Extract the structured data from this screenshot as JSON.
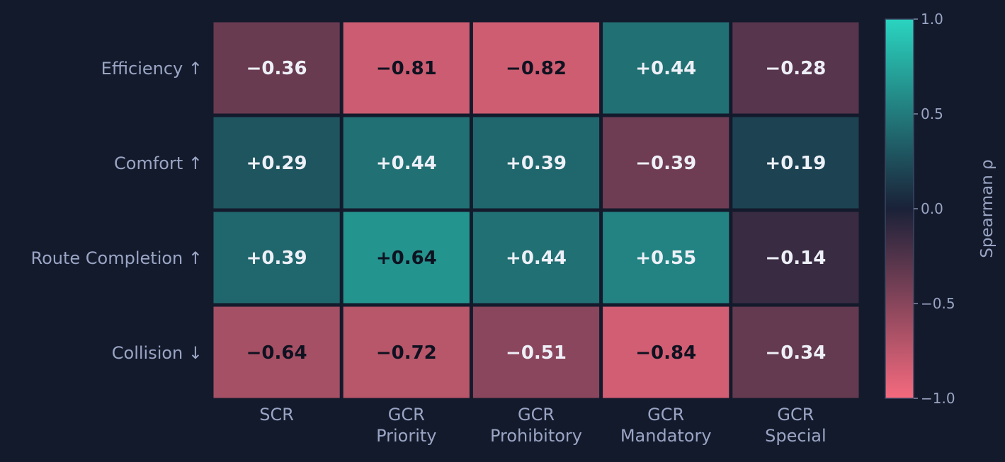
{
  "chart_data": {
    "type": "heatmap",
    "rows": [
      "Efficiency ↑",
      "Comfort ↑",
      "Route Completion ↑",
      "Collision ↓"
    ],
    "columns": [
      [
        "SCR"
      ],
      [
        "GCR",
        "Priority"
      ],
      [
        "GCR",
        "Prohibitory"
      ],
      [
        "GCR",
        "Mandatory"
      ],
      [
        "GCR",
        "Special"
      ]
    ],
    "values": [
      [
        -0.36,
        -0.81,
        -0.82,
        0.44,
        -0.28
      ],
      [
        0.29,
        0.44,
        0.39,
        -0.39,
        0.19
      ],
      [
        0.39,
        0.64,
        0.44,
        0.55,
        -0.14
      ],
      [
        -0.64,
        -0.72,
        -0.51,
        -0.84,
        -0.34
      ]
    ],
    "value_labels": [
      [
        "−0.36",
        "−0.81",
        "−0.82",
        "+0.44",
        "−0.28"
      ],
      [
        "+0.29",
        "+0.44",
        "+0.39",
        "−0.39",
        "+0.19"
      ],
      [
        "+0.39",
        "+0.64",
        "+0.44",
        "+0.55",
        "−0.14"
      ],
      [
        "−0.64",
        "−0.72",
        "−0.51",
        "−0.84",
        "−0.34"
      ]
    ],
    "colorbar": {
      "label": "Spearman ρ",
      "range": [
        -1.0,
        1.0
      ],
      "ticks": [
        1.0,
        0.5,
        0.0,
        -0.5,
        -1.0
      ],
      "tick_labels": [
        "1.0",
        "0.5",
        "0.0",
        "−0.5",
        "−1.0"
      ]
    },
    "colors": {
      "background": "#131a2c",
      "negative": "#f56a7e",
      "neutral": "#1a2138",
      "positive": "#2ad4c0",
      "label": "#9aa5c4",
      "light_text": "#eef0f8",
      "dark_text": "#0e1220"
    }
  }
}
